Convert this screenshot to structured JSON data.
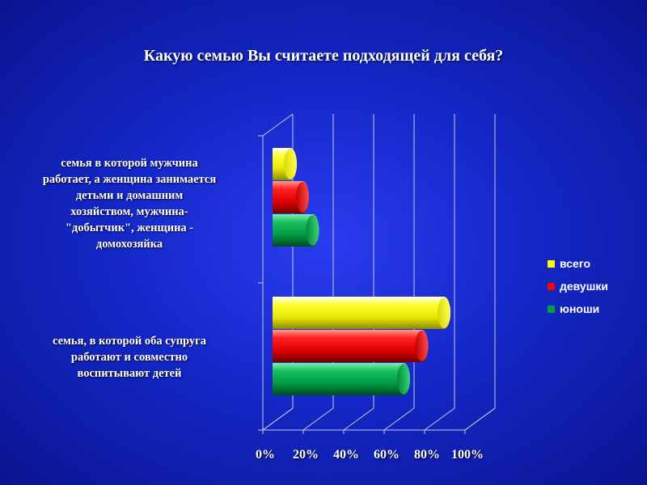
{
  "chart_data": {
    "type": "bar",
    "orientation": "horizontal",
    "title": "Какую семью Вы считаете подходящей для себя?",
    "categories": [
      "семья в которой мужчина работает, а женщина занимается детьми и домашним хозяйством, мужчина-\"добытчик\", женщина - домохозяйка",
      "семья, в которой оба супруга работают и совместно воспитывают детей"
    ],
    "category_lines": [
      [
        "семья в которой мужчина",
        "работает, а женщина занимается",
        "детьми и домашним",
        "хозяйством, мужчина-",
        "\"добытчик\", женщина -",
        "домохозяйка"
      ],
      [
        "семья, в которой оба супруга",
        "работают и совместно",
        "воспитывают детей"
      ]
    ],
    "series": [
      {
        "name": "всего",
        "values": [
          12,
          88
        ],
        "color": "#ffff00"
      },
      {
        "name": "девушки",
        "values": [
          18,
          77
        ],
        "color": "#ff0000"
      },
      {
        "name": "юноши",
        "values": [
          23,
          68
        ],
        "color": "#00a040"
      }
    ],
    "xlim": [
      0,
      100
    ],
    "x_ticks": [
      "0%",
      "20%",
      "40%",
      "60%",
      "80%",
      "100%"
    ],
    "legend_position": "right",
    "grid": true
  }
}
